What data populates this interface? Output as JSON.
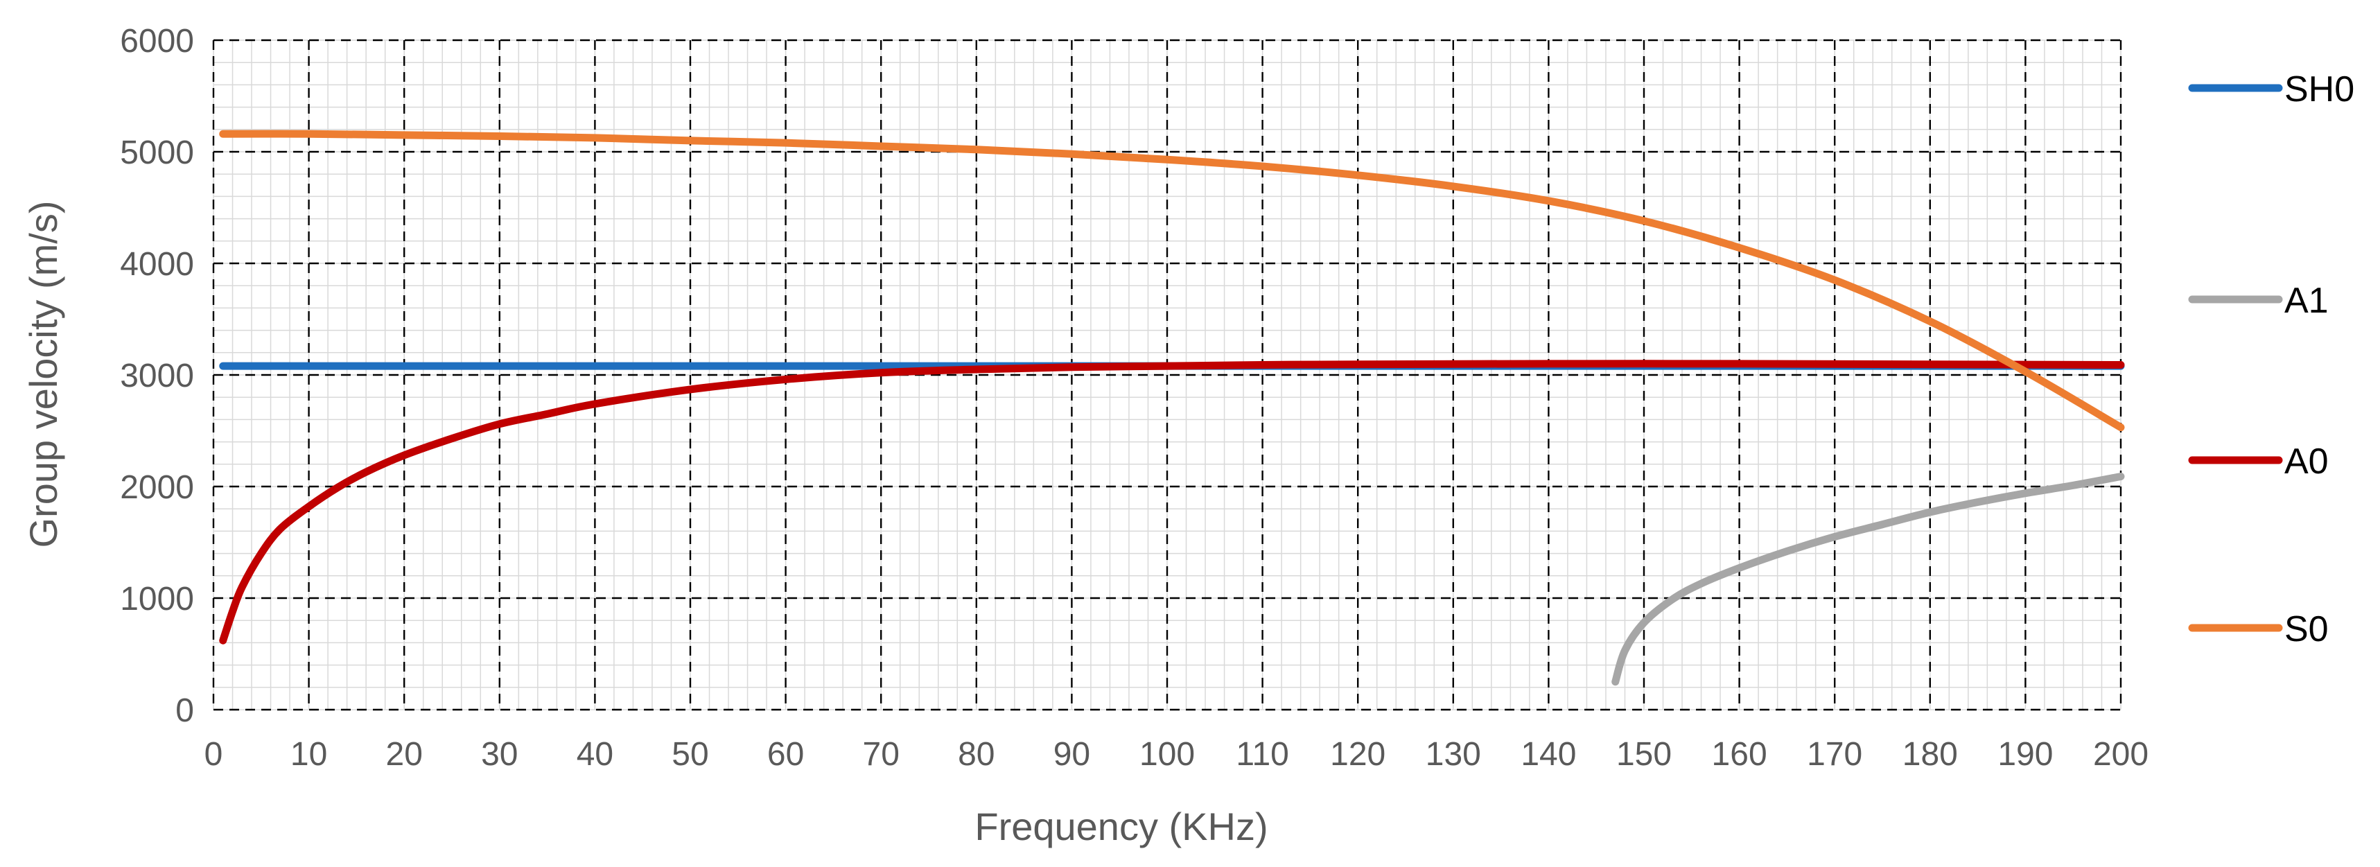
{
  "chart_data": {
    "type": "line",
    "title": "",
    "xlabel": "Frequency (KHz)",
    "ylabel": "Group velocity (m/s)",
    "xlim": [
      0,
      200
    ],
    "ylim": [
      0,
      6000
    ],
    "x_ticks": [
      0,
      10,
      20,
      30,
      40,
      50,
      60,
      70,
      80,
      90,
      100,
      110,
      120,
      130,
      140,
      150,
      160,
      170,
      180,
      190,
      200
    ],
    "y_ticks": [
      0,
      1000,
      2000,
      3000,
      4000,
      5000,
      6000
    ],
    "grid": "major dashed, minor solid",
    "legend_position": "right",
    "series": [
      {
        "name": "SH0",
        "color": "#1f6fbf",
        "x": [
          1,
          200
        ],
        "y": [
          3080,
          3080
        ]
      },
      {
        "name": "A1",
        "color": "#a6a6a6",
        "x": [
          147,
          148,
          150,
          153,
          156,
          160,
          165,
          170,
          175,
          180,
          185,
          190,
          195,
          200
        ],
        "y": [
          250,
          530,
          780,
          990,
          1130,
          1270,
          1420,
          1550,
          1660,
          1770,
          1860,
          1940,
          2010,
          2090
        ]
      },
      {
        "name": "A0",
        "color": "#c00000",
        "x": [
          1,
          2,
          3,
          5,
          7,
          10,
          13,
          16,
          20,
          25,
          30,
          35,
          40,
          50,
          60,
          70,
          80,
          90,
          100,
          110,
          120,
          140,
          160,
          180,
          200
        ],
        "y": [
          620,
          880,
          1100,
          1400,
          1620,
          1820,
          1990,
          2130,
          2280,
          2430,
          2560,
          2650,
          2740,
          2870,
          2960,
          3020,
          3050,
          3070,
          3080,
          3090,
          3095,
          3100,
          3100,
          3095,
          3090
        ]
      },
      {
        "name": "S0",
        "color": "#ed7d31",
        "x": [
          1,
          10,
          20,
          30,
          40,
          50,
          60,
          70,
          80,
          90,
          100,
          110,
          120,
          130,
          140,
          150,
          160,
          170,
          180,
          190,
          200
        ],
        "y": [
          5160,
          5160,
          5150,
          5140,
          5125,
          5100,
          5080,
          5050,
          5020,
          4980,
          4930,
          4870,
          4790,
          4690,
          4560,
          4380,
          4140,
          3850,
          3480,
          3030,
          2530
        ]
      }
    ]
  }
}
